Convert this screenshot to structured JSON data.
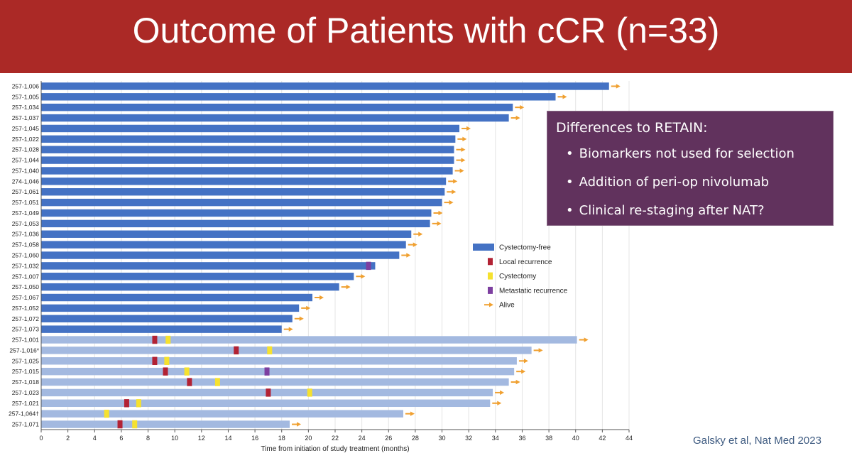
{
  "header": {
    "title": "Outcome of Patients with cCR (n=33)",
    "background_color": "#ab2926"
  },
  "callout": {
    "title": "Differences to RETAIN:",
    "bullets": [
      "Biomarkers not used for selection",
      "Addition of peri-op nivolumab",
      "Clinical re-staging after NAT?"
    ],
    "background_color": "#61325d"
  },
  "citation": "Galsky et al, Nat Med 2023",
  "chart_data": {
    "type": "bar",
    "orientation": "horizontal",
    "title": "",
    "xlabel": "Time from initiation of study treatment (months)",
    "ylabel": "",
    "xlim": [
      0,
      44
    ],
    "xticks": [
      0,
      2,
      4,
      6,
      8,
      10,
      12,
      14,
      16,
      18,
      20,
      22,
      24,
      26,
      28,
      30,
      32,
      34,
      36,
      38,
      40,
      42,
      44
    ],
    "legend_position": "center-right",
    "legend": [
      {
        "key": "cystectomy_free",
        "label": "Cystectomy-free",
        "symbol": "bar",
        "color": "#4472c4"
      },
      {
        "key": "local",
        "label": "Local recurrence",
        "symbol": "square",
        "color": "#b22234"
      },
      {
        "key": "cystectomy",
        "label": "Cystectomy",
        "symbol": "square",
        "color": "#f5e12f"
      },
      {
        "key": "metastatic",
        "label": "Metastatic recurrence",
        "symbol": "square",
        "color": "#7d3fa0"
      },
      {
        "key": "alive",
        "label": "Alive",
        "symbol": "arrow",
        "color": "#f0a030"
      }
    ],
    "colors": {
      "cystectomy_free": "#4472c4",
      "post_event": "#a3b9e0",
      "local": "#b22234",
      "cystectomy": "#f5e12f",
      "metastatic": "#7d3fa0",
      "alive": "#f0a030"
    },
    "patients": [
      {
        "id": "257-1,006",
        "end": 42.5,
        "cystectomy_free": true,
        "events": []
      },
      {
        "id": "257-1,005",
        "end": 38.5,
        "cystectomy_free": true,
        "events": []
      },
      {
        "id": "257-1,034",
        "end": 35.3,
        "cystectomy_free": true,
        "events": []
      },
      {
        "id": "257-1,037",
        "end": 35.0,
        "cystectomy_free": true,
        "events": []
      },
      {
        "id": "257-1,045",
        "end": 31.3,
        "cystectomy_free": true,
        "events": []
      },
      {
        "id": "257-1,022",
        "end": 31.0,
        "cystectomy_free": true,
        "events": []
      },
      {
        "id": "257-1,028",
        "end": 30.9,
        "cystectomy_free": true,
        "events": []
      },
      {
        "id": "257-1,044",
        "end": 30.9,
        "cystectomy_free": true,
        "events": []
      },
      {
        "id": "257-1,040",
        "end": 30.8,
        "cystectomy_free": true,
        "events": []
      },
      {
        "id": "274-1,046",
        "end": 30.3,
        "cystectomy_free": true,
        "events": []
      },
      {
        "id": "257-1,061",
        "end": 30.2,
        "cystectomy_free": true,
        "events": []
      },
      {
        "id": "257-1,051",
        "end": 30.0,
        "cystectomy_free": true,
        "events": []
      },
      {
        "id": "257-1,049",
        "end": 29.2,
        "cystectomy_free": true,
        "events": []
      },
      {
        "id": "257-1,053",
        "end": 29.1,
        "cystectomy_free": true,
        "events": []
      },
      {
        "id": "257-1,036",
        "end": 27.7,
        "cystectomy_free": true,
        "events": []
      },
      {
        "id": "257-1,058",
        "end": 27.3,
        "cystectomy_free": true,
        "events": []
      },
      {
        "id": "257-1,060",
        "end": 26.8,
        "cystectomy_free": true,
        "events": []
      },
      {
        "id": "257-1,032",
        "end": 25.0,
        "cystectomy_free": true,
        "alive": false,
        "events": [
          {
            "type": "metastatic",
            "t": 24.5
          }
        ]
      },
      {
        "id": "257-1,007",
        "end": 23.4,
        "cystectomy_free": true,
        "events": []
      },
      {
        "id": "257-1,050",
        "end": 22.3,
        "cystectomy_free": true,
        "events": []
      },
      {
        "id": "257-1,067",
        "end": 20.3,
        "cystectomy_free": true,
        "events": []
      },
      {
        "id": "257-1,052",
        "end": 19.3,
        "cystectomy_free": true,
        "events": []
      },
      {
        "id": "257-1,072",
        "end": 18.8,
        "cystectomy_free": true,
        "events": []
      },
      {
        "id": "257-1,073",
        "end": 18.0,
        "cystectomy_free": true,
        "events": []
      },
      {
        "id": "257-1,001",
        "end": 40.1,
        "cystectomy_free": false,
        "events": [
          {
            "type": "local",
            "t": 8.5
          },
          {
            "type": "cystectomy",
            "t": 9.5
          }
        ]
      },
      {
        "id": "257-1,016*",
        "end": 36.7,
        "cystectomy_free": false,
        "events": [
          {
            "type": "local",
            "t": 14.6
          },
          {
            "type": "cystectomy",
            "t": 17.1
          }
        ]
      },
      {
        "id": "257-1,025",
        "end": 35.6,
        "cystectomy_free": false,
        "events": [
          {
            "type": "local",
            "t": 8.5
          },
          {
            "type": "cystectomy",
            "t": 9.4
          }
        ]
      },
      {
        "id": "257-1,015",
        "end": 35.4,
        "cystectomy_free": false,
        "events": [
          {
            "type": "local",
            "t": 9.3
          },
          {
            "type": "cystectomy",
            "t": 10.9
          },
          {
            "type": "metastatic",
            "t": 16.9
          }
        ]
      },
      {
        "id": "257-1,018",
        "end": 35.0,
        "cystectomy_free": false,
        "events": [
          {
            "type": "local",
            "t": 11.1
          },
          {
            "type": "cystectomy",
            "t": 13.2
          }
        ]
      },
      {
        "id": "257-1,023",
        "end": 33.8,
        "cystectomy_free": false,
        "events": [
          {
            "type": "local",
            "t": 17.0
          },
          {
            "type": "cystectomy",
            "t": 20.1
          }
        ]
      },
      {
        "id": "257-1,021",
        "end": 33.6,
        "cystectomy_free": false,
        "events": [
          {
            "type": "local",
            "t": 6.4
          },
          {
            "type": "cystectomy",
            "t": 7.3
          }
        ]
      },
      {
        "id": "257-1,064†",
        "end": 27.1,
        "cystectomy_free": false,
        "events": [
          {
            "type": "cystectomy",
            "t": 4.9
          }
        ]
      },
      {
        "id": "257-1,071",
        "end": 18.6,
        "cystectomy_free": false,
        "events": [
          {
            "type": "local",
            "t": 5.9
          },
          {
            "type": "cystectomy",
            "t": 7.0
          }
        ]
      }
    ]
  }
}
